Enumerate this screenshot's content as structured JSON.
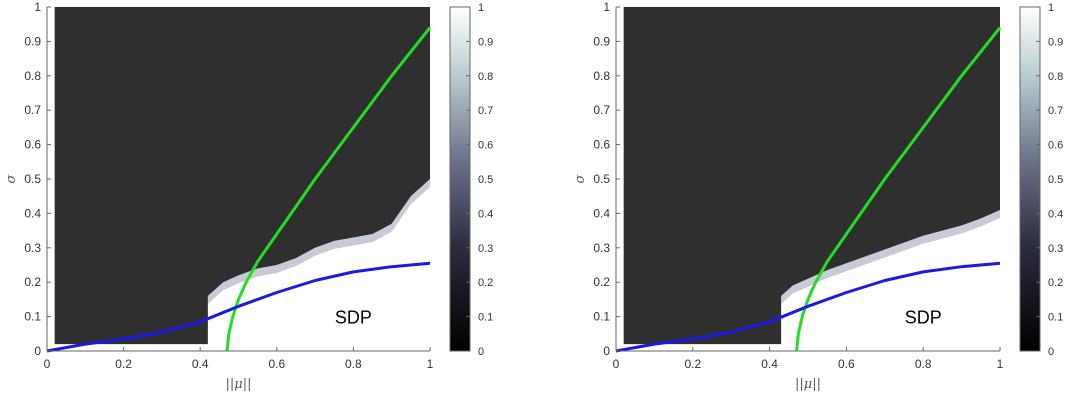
{
  "chart_data": [
    {
      "type": "heatmap",
      "xlabel": "||μ||",
      "ylabel": "σ",
      "xlim": [
        0,
        1
      ],
      "ylim": [
        0,
        1
      ],
      "xticks": [
        "0",
        "0.2",
        "0.4",
        "0.6",
        "0.8",
        "1"
      ],
      "yticks": [
        "0",
        "0.1",
        "0.2",
        "0.3",
        "0.4",
        "0.5",
        "0.6",
        "0.7",
        "0.8",
        "0.9",
        "1"
      ],
      "colorbar": {
        "range": [
          0,
          1
        ],
        "ticks": [
          "0",
          "0.1",
          "0.2",
          "0.3",
          "0.4",
          "0.5",
          "0.6",
          "0.7",
          "0.8",
          "0.9",
          "1"
        ]
      },
      "annotation": "SDP",
      "grid": false,
      "colors": {
        "background": "#2f2f2f",
        "green_curve": "#22dd22",
        "blue_curve": "#1a1ae6"
      },
      "region_boundary": {
        "x": [
          0.42,
          0.46,
          0.5,
          0.55,
          0.6,
          0.65,
          0.7,
          0.75,
          0.8,
          0.85,
          0.9,
          0.95,
          1.0
        ],
        "y": [
          0.16,
          0.2,
          0.22,
          0.24,
          0.25,
          0.27,
          0.3,
          0.32,
          0.33,
          0.34,
          0.37,
          0.45,
          0.5
        ]
      },
      "series": [
        {
          "values_x": [
            0.47,
            0.475,
            0.485,
            0.5,
            0.52,
            0.55,
            0.6,
            0.65,
            0.7,
            0.8,
            0.9,
            1.0
          ],
          "values_y": [
            0.0,
            0.05,
            0.1,
            0.15,
            0.2,
            0.26,
            0.34,
            0.42,
            0.5,
            0.65,
            0.8,
            0.94
          ]
        },
        {
          "values_x": [
            0.0,
            0.1,
            0.2,
            0.3,
            0.4,
            0.5,
            0.6,
            0.7,
            0.8,
            0.9,
            1.0
          ],
          "values_y": [
            0.0,
            0.02,
            0.035,
            0.055,
            0.085,
            0.13,
            0.17,
            0.205,
            0.23,
            0.245,
            0.255
          ]
        }
      ]
    },
    {
      "type": "heatmap",
      "xlabel": "||μ||",
      "ylabel": "σ",
      "xlim": [
        0,
        1
      ],
      "ylim": [
        0,
        1
      ],
      "xticks": [
        "0",
        "0.2",
        "0.4",
        "0.6",
        "0.8",
        "1"
      ],
      "yticks": [
        "0",
        "0.1",
        "0.2",
        "0.3",
        "0.4",
        "0.5",
        "0.6",
        "0.7",
        "0.8",
        "0.9",
        "1"
      ],
      "colorbar": {
        "range": [
          0,
          1
        ],
        "ticks": [
          "0",
          "0.1",
          "0.2",
          "0.3",
          "0.4",
          "0.5",
          "0.6",
          "0.7",
          "0.8",
          "0.9",
          "1"
        ]
      },
      "annotation": "SDP",
      "grid": false,
      "colors": {
        "background": "#2f2f2f",
        "green_curve": "#22dd22",
        "blue_curve": "#1a1ae6"
      },
      "region_boundary": {
        "x": [
          0.43,
          0.46,
          0.5,
          0.55,
          0.6,
          0.65,
          0.7,
          0.75,
          0.8,
          0.85,
          0.9,
          0.95,
          1.0
        ],
        "y": [
          0.16,
          0.19,
          0.21,
          0.235,
          0.255,
          0.275,
          0.295,
          0.315,
          0.335,
          0.35,
          0.365,
          0.385,
          0.41
        ]
      },
      "series": [
        {
          "values_x": [
            0.47,
            0.475,
            0.485,
            0.5,
            0.52,
            0.55,
            0.6,
            0.65,
            0.7,
            0.8,
            0.9,
            1.0
          ],
          "values_y": [
            0.0,
            0.05,
            0.1,
            0.15,
            0.2,
            0.26,
            0.34,
            0.42,
            0.5,
            0.65,
            0.8,
            0.94
          ]
        },
        {
          "values_x": [
            0.0,
            0.1,
            0.2,
            0.3,
            0.4,
            0.5,
            0.6,
            0.7,
            0.8,
            0.9,
            1.0
          ],
          "values_y": [
            0.0,
            0.02,
            0.035,
            0.055,
            0.085,
            0.13,
            0.17,
            0.205,
            0.23,
            0.245,
            0.255
          ]
        }
      ]
    }
  ]
}
